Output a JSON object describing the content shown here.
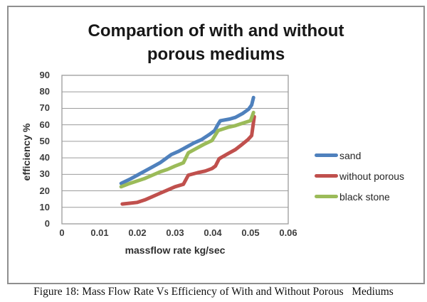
{
  "figure": {
    "caption": "Figure 18: Mass Flow Rate Vs Efficiency of With and Without Porous   Mediums"
  },
  "chart_data": {
    "type": "line",
    "title": "Compartion of with and without porous mediums",
    "title_lines": [
      "Compartion of with and without",
      "porous mediums"
    ],
    "xlabel": "massflow rate kg/sec",
    "ylabel": "efficiency %",
    "xlim": [
      0,
      0.06
    ],
    "ylim": [
      0,
      90
    ],
    "x_ticks": [
      "0",
      "0.01",
      "0.02",
      "0.03",
      "0.04",
      "0.05",
      "0.06"
    ],
    "y_ticks": [
      "0",
      "10",
      "20",
      "30",
      "40",
      "50",
      "60",
      "70",
      "80",
      "90"
    ],
    "grid": "horizontal",
    "legend_position": "right",
    "colors": {
      "gridline": "#9c9c9c",
      "plot_border": "#9c9c9c",
      "frame_border": "#8f8f8f",
      "tick_text": "#3d3d3d"
    },
    "series": [
      {
        "name": "sand",
        "color": "#4F81BD",
        "points": [
          [
            0.0157,
            24.5
          ],
          [
            0.018,
            27
          ],
          [
            0.02,
            29.5
          ],
          [
            0.022,
            32
          ],
          [
            0.024,
            34.5
          ],
          [
            0.026,
            37
          ],
          [
            0.0275,
            39.5
          ],
          [
            0.029,
            42
          ],
          [
            0.031,
            44
          ],
          [
            0.033,
            46.5
          ],
          [
            0.035,
            49
          ],
          [
            0.037,
            51
          ],
          [
            0.039,
            54
          ],
          [
            0.0405,
            56.5
          ],
          [
            0.0413,
            60
          ],
          [
            0.042,
            62.5
          ],
          [
            0.0445,
            63.5
          ],
          [
            0.046,
            64.5
          ],
          [
            0.048,
            67
          ],
          [
            0.0495,
            69.5
          ],
          [
            0.0503,
            72
          ],
          [
            0.0508,
            76.5
          ]
        ]
      },
      {
        "name": "without porous",
        "color": "#C0504D",
        "points": [
          [
            0.016,
            12
          ],
          [
            0.018,
            12.5
          ],
          [
            0.02,
            13
          ],
          [
            0.022,
            14.5
          ],
          [
            0.024,
            16.5
          ],
          [
            0.026,
            18.5
          ],
          [
            0.028,
            20.5
          ],
          [
            0.03,
            22.5
          ],
          [
            0.0322,
            24
          ],
          [
            0.0335,
            29.5
          ],
          [
            0.036,
            31
          ],
          [
            0.038,
            32
          ],
          [
            0.0398,
            33.5
          ],
          [
            0.0407,
            35
          ],
          [
            0.0417,
            39.5
          ],
          [
            0.044,
            42.5
          ],
          [
            0.046,
            45
          ],
          [
            0.0477,
            48
          ],
          [
            0.0493,
            51
          ],
          [
            0.0503,
            53.5
          ],
          [
            0.051,
            65
          ]
        ]
      },
      {
        "name": "black stone",
        "color": "#9BBB59",
        "points": [
          [
            0.0157,
            22.5
          ],
          [
            0.018,
            24.5
          ],
          [
            0.02,
            26
          ],
          [
            0.022,
            27.5
          ],
          [
            0.024,
            29.5
          ],
          [
            0.026,
            31.5
          ],
          [
            0.028,
            33
          ],
          [
            0.03,
            35
          ],
          [
            0.0322,
            37
          ],
          [
            0.0335,
            43
          ],
          [
            0.0355,
            45.5
          ],
          [
            0.0375,
            48
          ],
          [
            0.0398,
            50.5
          ],
          [
            0.0414,
            56.5
          ],
          [
            0.044,
            58.5
          ],
          [
            0.046,
            59.5
          ],
          [
            0.048,
            61
          ],
          [
            0.05,
            62.5
          ],
          [
            0.0508,
            67.5
          ]
        ]
      }
    ]
  }
}
